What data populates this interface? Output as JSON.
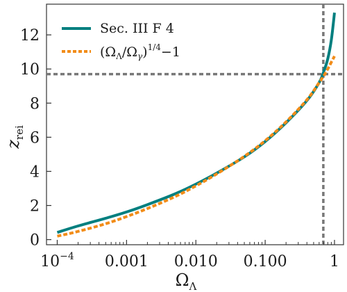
{
  "chart_data": {
    "type": "line",
    "title": "",
    "xlabel": "Ω",
    "xlabel_sub": "Λ",
    "ylabel": "z",
    "ylabel_sub": "rei",
    "x_scale": "log",
    "xlim": [
      7e-05,
      1.35
    ],
    "ylim": [
      -0.3,
      13.8
    ],
    "grid": false,
    "legend_position": "top-left",
    "x_ticks": [
      {
        "value": 0.0001,
        "label": "10",
        "sup": "−4"
      },
      {
        "value": 0.001,
        "label": "0.001",
        "sup": ""
      },
      {
        "value": 0.01,
        "label": "0.010",
        "sup": ""
      },
      {
        "value": 0.1,
        "label": "0.100",
        "sup": ""
      },
      {
        "value": 1,
        "label": "1",
        "sup": ""
      }
    ],
    "y_ticks": [
      0,
      2,
      4,
      6,
      8,
      10,
      12
    ],
    "series": [
      {
        "name": "Sec. III F 4",
        "color": "#007f7f",
        "style": "solid",
        "x": [
          0.0001,
          0.0002,
          0.0005,
          0.001,
          0.002,
          0.005,
          0.01,
          0.02,
          0.05,
          0.1,
          0.2,
          0.4,
          0.6,
          0.7,
          0.8,
          0.9,
          1.0
        ],
        "y": [
          0.42,
          0.8,
          1.25,
          1.62,
          2.05,
          2.68,
          3.25,
          3.9,
          4.85,
          5.75,
          6.85,
          8.15,
          9.2,
          9.85,
          10.6,
          11.7,
          13.3
        ]
      },
      {
        "name": "(Ω",
        "name_parts": [
          "(Ω",
          "Λ",
          "/Ω",
          "γ",
          ")",
          "1/4",
          "−1"
        ],
        "color": "#f28c18",
        "style": "dashed",
        "x": [
          0.0001,
          0.0002,
          0.0005,
          0.001,
          0.002,
          0.005,
          0.01,
          0.02,
          0.05,
          0.1,
          0.2,
          0.4,
          0.6,
          0.7,
          0.8,
          0.9,
          1.0
        ],
        "y": [
          0.2,
          0.48,
          0.93,
          1.35,
          1.82,
          2.52,
          3.15,
          3.85,
          4.88,
          5.8,
          6.9,
          8.2,
          9.2,
          9.6,
          10.0,
          10.4,
          10.75
        ]
      }
    ],
    "reference_lines": [
      {
        "orientation": "horizontal",
        "value": 9.7,
        "color": "#777777",
        "style": "dashed"
      },
      {
        "orientation": "vertical",
        "value": 0.69,
        "color": "#777777",
        "style": "dashed"
      }
    ]
  }
}
